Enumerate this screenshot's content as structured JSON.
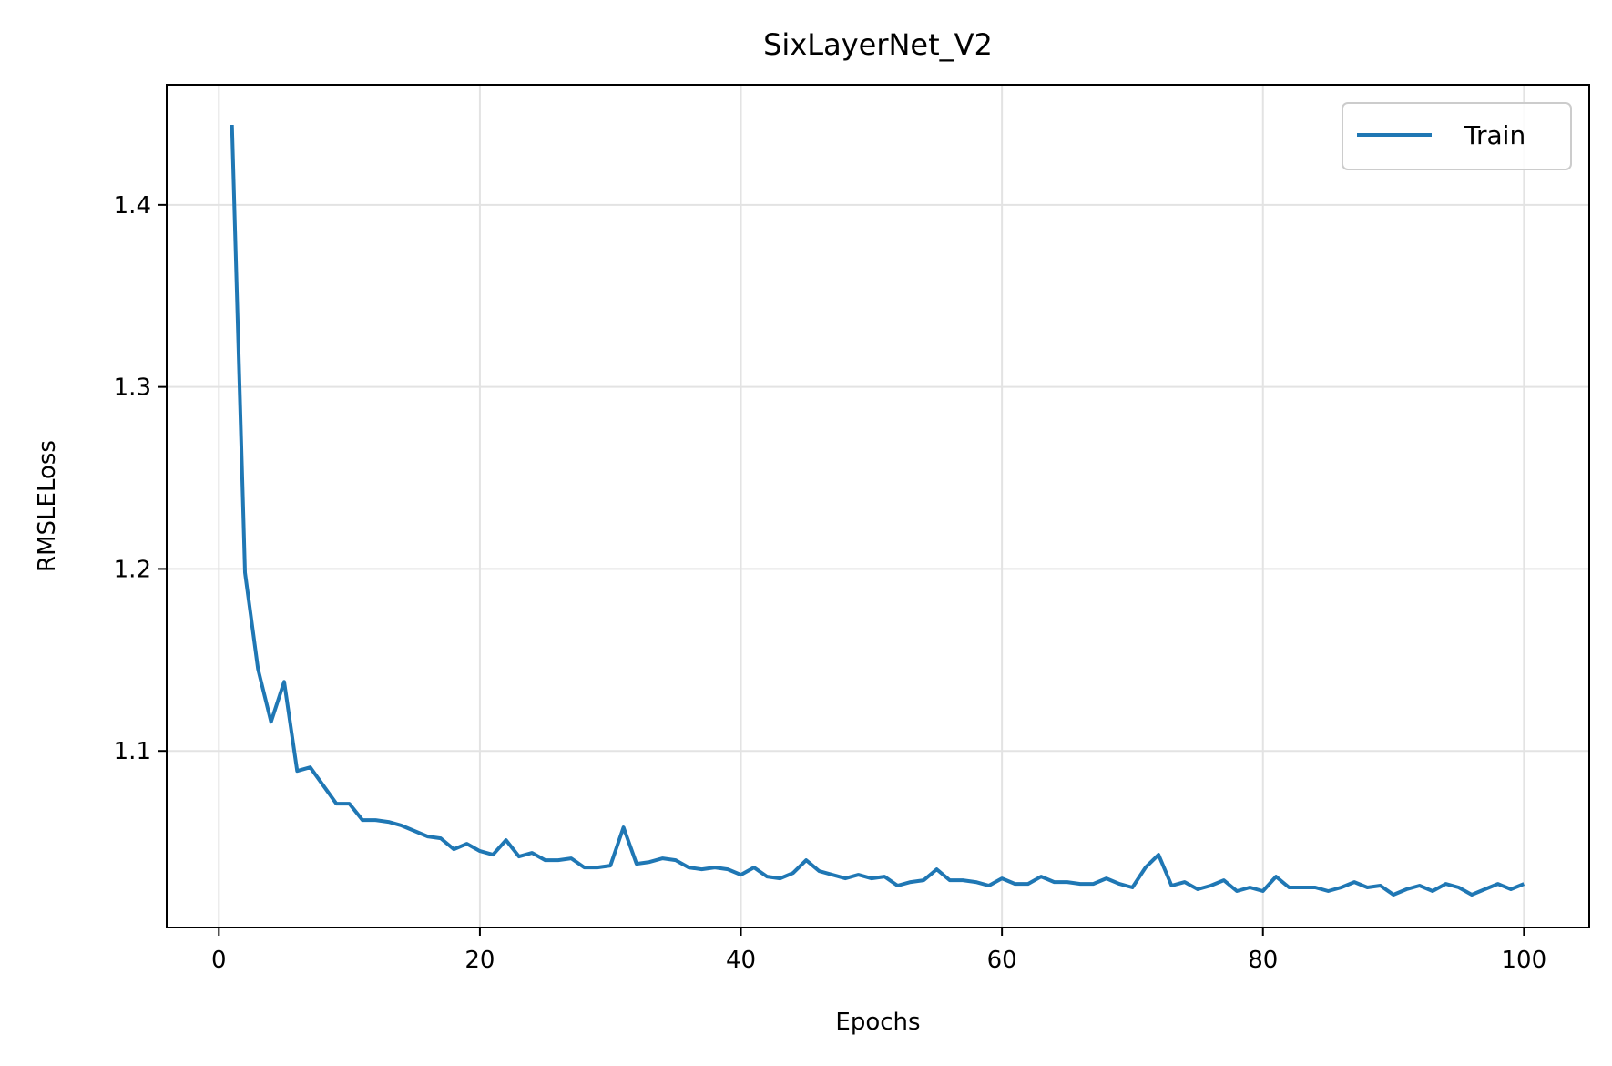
{
  "chart_data": {
    "type": "line",
    "title": "SixLayerNet_V2",
    "xlabel": "Epochs",
    "ylabel": "RMSLELoss",
    "xlim": [
      -4,
      105
    ],
    "ylim": [
      1.003,
      1.466
    ],
    "xticks": [
      0,
      20,
      40,
      60,
      80,
      100
    ],
    "yticks": [
      1.1,
      1.2,
      1.3,
      1.4
    ],
    "grid": true,
    "legend": "top-right",
    "series": [
      {
        "name": "Train",
        "color": "#1f77b4",
        "x": [
          1,
          2,
          3,
          4,
          5,
          6,
          7,
          8,
          9,
          10,
          11,
          12,
          13,
          14,
          15,
          16,
          17,
          18,
          19,
          20,
          21,
          22,
          23,
          24,
          25,
          26,
          27,
          28,
          29,
          30,
          31,
          32,
          33,
          34,
          35,
          36,
          37,
          38,
          39,
          40,
          41,
          42,
          43,
          44,
          45,
          46,
          47,
          48,
          49,
          50,
          51,
          52,
          53,
          54,
          55,
          56,
          57,
          58,
          59,
          60,
          61,
          62,
          63,
          64,
          65,
          66,
          67,
          68,
          69,
          70,
          71,
          72,
          73,
          74,
          75,
          76,
          77,
          78,
          79,
          80,
          81,
          82,
          83,
          84,
          85,
          86,
          87,
          88,
          89,
          90,
          91,
          92,
          93,
          94,
          95,
          96,
          97,
          98,
          99,
          100
        ],
        "y": [
          1.444,
          1.198,
          1.145,
          1.116,
          1.138,
          1.089,
          1.091,
          1.081,
          1.071,
          1.071,
          1.062,
          1.062,
          1.061,
          1.059,
          1.056,
          1.053,
          1.052,
          1.046,
          1.049,
          1.045,
          1.043,
          1.051,
          1.042,
          1.044,
          1.04,
          1.04,
          1.041,
          1.036,
          1.036,
          1.037,
          1.058,
          1.038,
          1.039,
          1.041,
          1.04,
          1.036,
          1.035,
          1.036,
          1.035,
          1.032,
          1.036,
          1.031,
          1.03,
          1.033,
          1.04,
          1.034,
          1.032,
          1.03,
          1.032,
          1.03,
          1.031,
          1.026,
          1.028,
          1.029,
          1.035,
          1.029,
          1.029,
          1.028,
          1.026,
          1.03,
          1.027,
          1.027,
          1.031,
          1.028,
          1.028,
          1.027,
          1.027,
          1.03,
          1.027,
          1.025,
          1.036,
          1.043,
          1.026,
          1.028,
          1.024,
          1.026,
          1.029,
          1.023,
          1.025,
          1.023,
          1.031,
          1.025,
          1.025,
          1.025,
          1.023,
          1.025,
          1.028,
          1.025,
          1.026,
          1.021,
          1.024,
          1.026,
          1.023,
          1.027,
          1.025,
          1.021,
          1.024,
          1.027,
          1.024,
          1.027
        ]
      }
    ]
  }
}
